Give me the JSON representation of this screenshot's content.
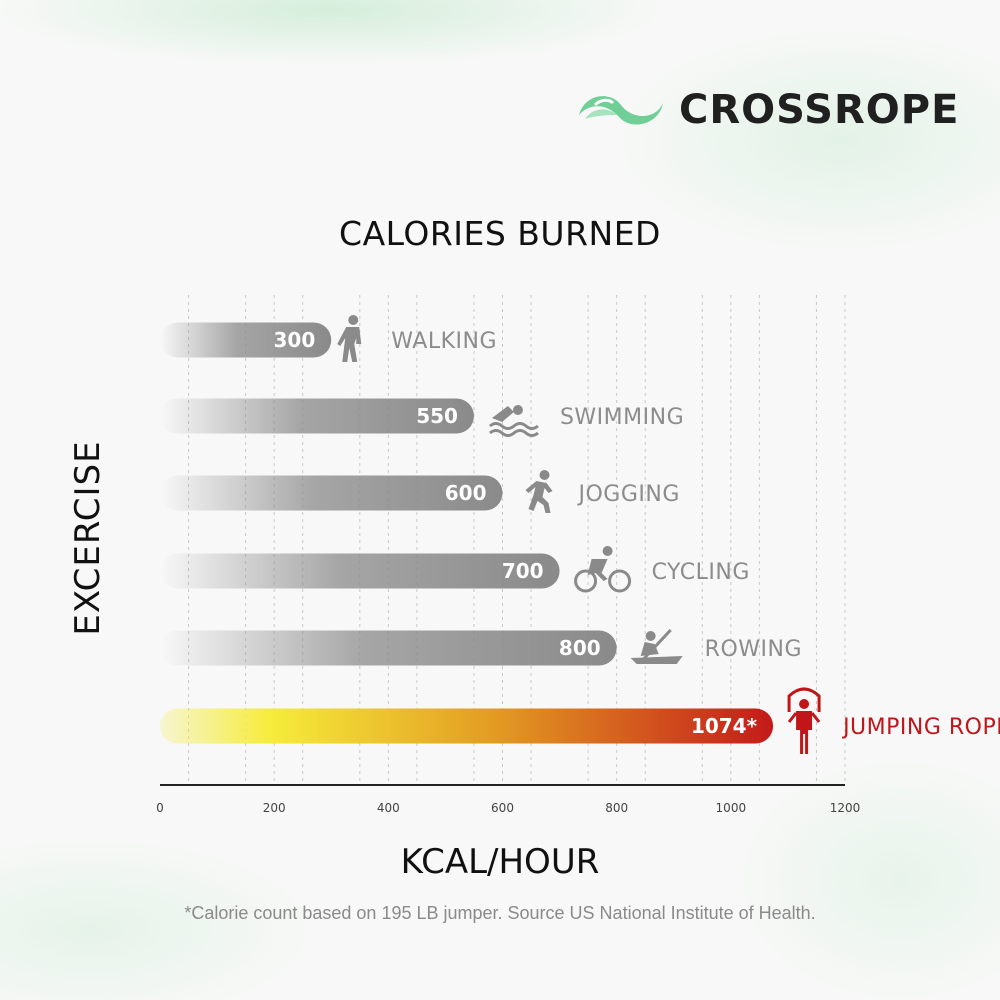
{
  "brand": {
    "name": "CROSSROPE",
    "logo_icon": "crossrope-swoosh-icon",
    "accent_color": "#6fcf97"
  },
  "footnote": "*Calorie count based on 195 LB jumper. Source US National Institute of Health.",
  "chart_data": {
    "type": "bar",
    "orientation": "horizontal",
    "title": "CALORIES BURNED",
    "xlabel": "KCAL/HOUR",
    "ylabel": "EXCERCISE",
    "xlim": [
      0,
      1200
    ],
    "xticks": [
      "0",
      "200",
      "400",
      "600",
      "800",
      "1000",
      "1200"
    ],
    "grid": "vertical-dashed",
    "categories": [
      "WALKING",
      "SWIMMING",
      "JOGGING",
      "CYCLING",
      "ROWING",
      "JUMPING ROPE"
    ],
    "values": [
      300,
      550,
      600,
      700,
      800,
      1074
    ],
    "value_labels": [
      "300",
      "550",
      "600",
      "700",
      "800",
      "1074*"
    ],
    "icons": [
      "walking-icon",
      "swimming-icon",
      "jogging-icon",
      "cycling-icon",
      "rowing-icon",
      "jumping-rope-icon"
    ],
    "colors": {
      "default_bar": "#8a8a8a",
      "default_label": "#8c8c8c",
      "highlight_bar_start": "#f6ec3a",
      "highlight_bar_end": "#c41a1a",
      "highlight_label": "#c0161a"
    },
    "highlight": "JUMPING ROPE"
  }
}
